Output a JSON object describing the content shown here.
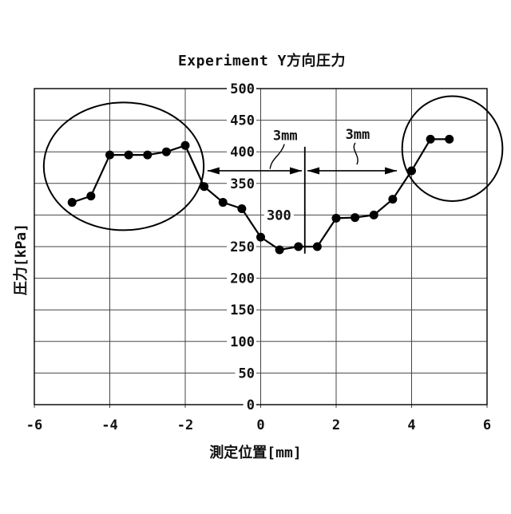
{
  "chart_data": {
    "type": "line",
    "title": "Experiment Y方向圧力",
    "xlabel": "測定位置[mm]",
    "ylabel": "圧力[kPa]",
    "xlim": [
      -6,
      6
    ],
    "ylim": [
      0,
      500
    ],
    "x_ticks": [
      -6,
      -4,
      -2,
      0,
      2,
      4,
      6
    ],
    "y_ticks": [
      0,
      50,
      100,
      150,
      200,
      250,
      300,
      350,
      400,
      450,
      500
    ],
    "grid": true,
    "legend": "none",
    "marker": "filled-circle",
    "x": [
      -5,
      -4.5,
      -4,
      -3.5,
      -3,
      -2.5,
      -2,
      -1.5,
      -1,
      -0.5,
      0,
      0.5,
      1,
      1.5,
      2,
      2.5,
      3,
      3.5,
      4,
      4.5,
      5
    ],
    "y": [
      320,
      330,
      395,
      395,
      395,
      400,
      410,
      345,
      320,
      310,
      265,
      245,
      250,
      250,
      295,
      296,
      300,
      325,
      370,
      420,
      420
    ],
    "annotations": {
      "spans": [
        {
          "label": "3mm",
          "x_start_mm": -1.41,
          "x_end_mm": 1.09,
          "y_kpa": 370,
          "label_x_mm": 0.65,
          "label_y_kpa": 426
        },
        {
          "label": "3mm",
          "x_start_mm": 1.24,
          "x_end_mm": 3.61,
          "y_kpa": 370,
          "label_x_mm": 2.57,
          "label_y_kpa": 428
        }
      ],
      "divider_line": {
        "x_mm": 1.17,
        "y_top_kpa": 408,
        "y_bottom_kpa": 239
      },
      "ellipses": [
        {
          "cx_mm": -3.63,
          "cy_kpa": 377,
          "rx_mm": 2.12,
          "ry_kpa": 101
        },
        {
          "cx_mm": 5.08,
          "cy_kpa": 405,
          "rx_mm": 1.33,
          "ry_kpa": 83
        }
      ],
      "relocated_y_tick": "300"
    }
  },
  "colors": {
    "background": "#ffffff",
    "grid": "#444444",
    "border": "#000000",
    "series": "#000000",
    "annotation": "#000000",
    "text": "#111111"
  }
}
